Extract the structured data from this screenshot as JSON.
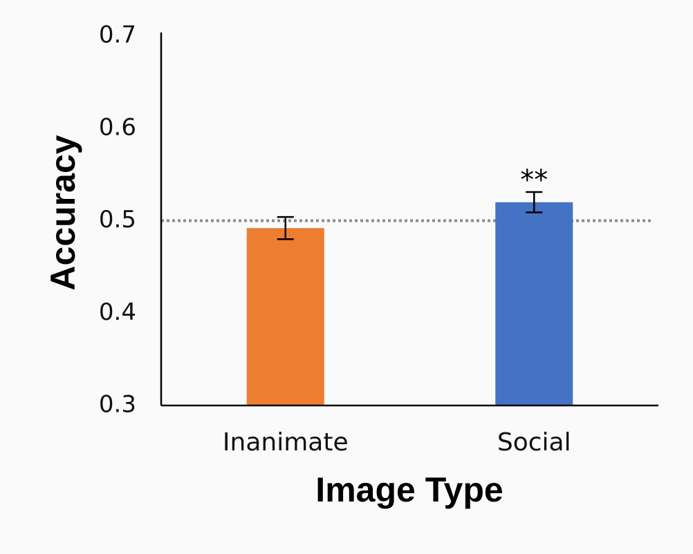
{
  "chart_data": {
    "type": "bar",
    "title": "",
    "xlabel": "Image Type",
    "ylabel": "Accuracy",
    "categories": [
      "Inanimate",
      "Social"
    ],
    "values": [
      0.492,
      0.52
    ],
    "error": [
      0.012,
      0.011
    ],
    "bar_colors": [
      "#ED7D31",
      "#4472C4"
    ],
    "annotations": [
      {
        "category": "Social",
        "text": "**"
      }
    ],
    "reference_line": {
      "y": 0.5,
      "style": "dotted",
      "color": "#8c8c8c"
    },
    "ylim": [
      0.3,
      0.7
    ],
    "yticks": [
      "0.3",
      "0.4",
      "0.5",
      "0.6",
      "0.7"
    ],
    "grid": false,
    "legend": "none"
  }
}
